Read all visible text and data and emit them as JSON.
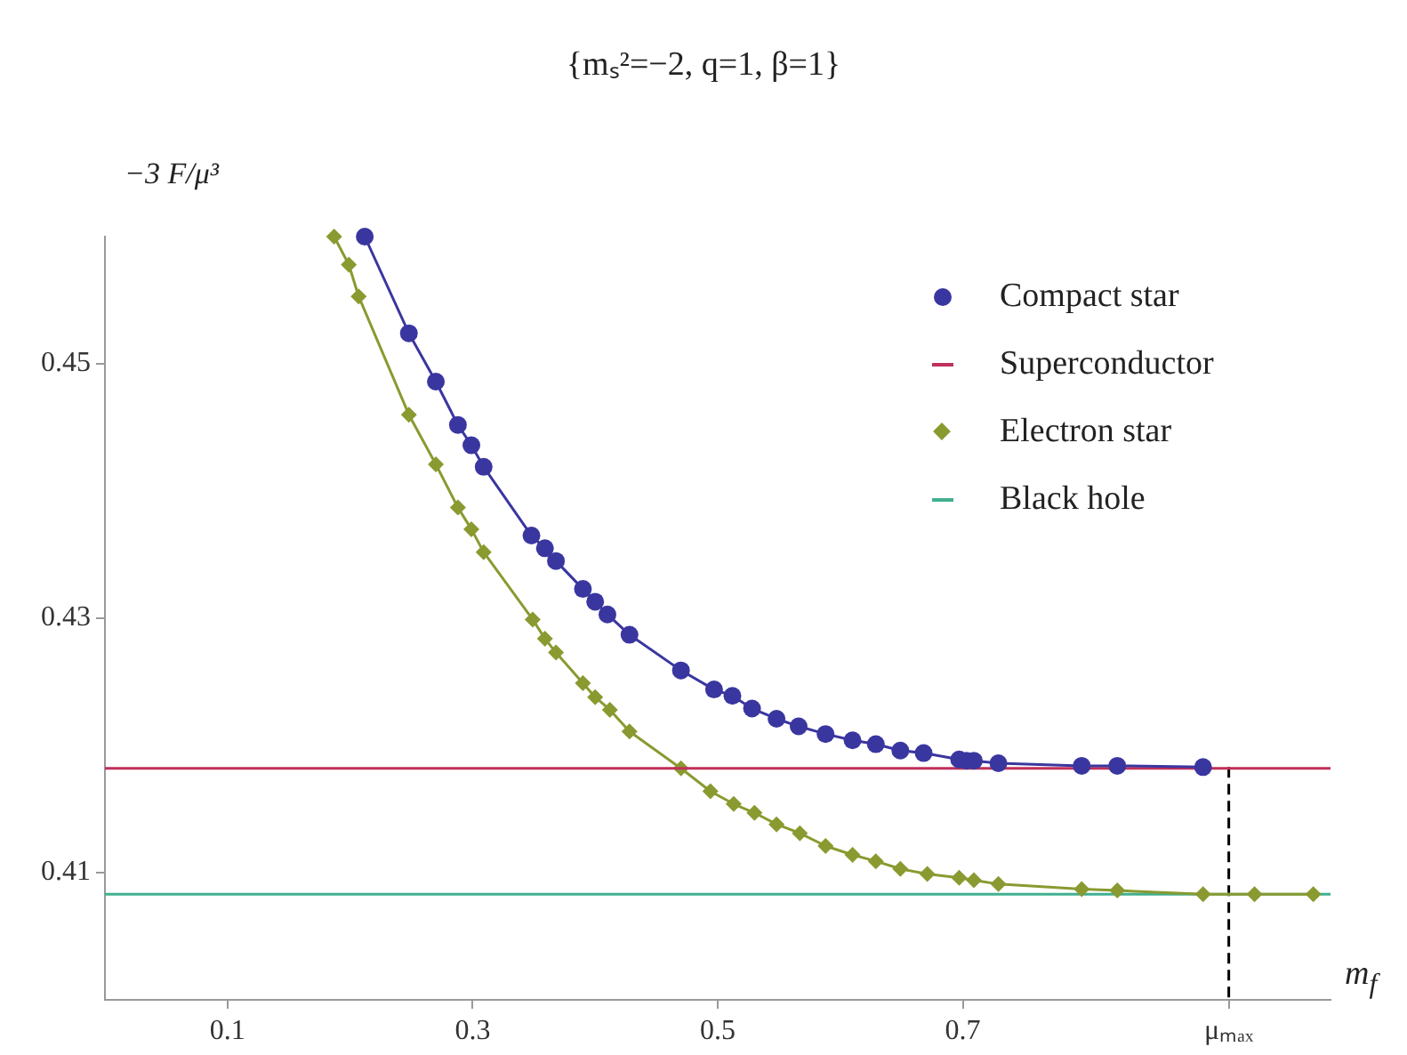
{
  "chart_data": {
    "type": "line",
    "title": "{mₛ²=−2, q=1, β=1}",
    "xlabel": "m$_{f}$",
    "ylabel": "−3 F/μ³",
    "xlim": [
      0,
      1
    ],
    "ylim": [
      0.4,
      0.46
    ],
    "xticks": [
      0.1,
      0.3,
      0.5,
      0.7,
      {
        "value": 0.917,
        "label": "μₘₐₓ"
      }
    ],
    "yticks": [
      0.41,
      0.43,
      0.45
    ],
    "grid": false,
    "legend": "top right",
    "series": [
      {
        "name": "Compact star",
        "color": "#3a36a0",
        "marker": "circle",
        "x": [
          0.212,
          0.248,
          0.27,
          0.288,
          0.299,
          0.309,
          0.348,
          0.359,
          0.368,
          0.39,
          0.4,
          0.41,
          0.428,
          0.47,
          0.497,
          0.512,
          0.528,
          0.548,
          0.566,
          0.588,
          0.61,
          0.629,
          0.649,
          0.668,
          0.697,
          0.703,
          0.709,
          0.729,
          0.797,
          0.826,
          0.896
        ],
        "values": [
          0.46,
          0.4524,
          0.4486,
          0.4452,
          0.4436,
          0.4419,
          0.4365,
          0.4355,
          0.4345,
          0.4323,
          0.4313,
          0.4303,
          0.4287,
          0.4259,
          0.4244,
          0.4239,
          0.4229,
          0.4221,
          0.4215,
          0.4209,
          0.4204,
          0.4201,
          0.4196,
          0.4194,
          0.4189,
          0.4188,
          0.4188,
          0.4186,
          0.4184,
          0.4184,
          0.4183
        ]
      },
      {
        "name": "Superconductor",
        "color": "#c0305a",
        "marker": "none",
        "x": [
          0,
          1
        ],
        "values": [
          0.4182,
          0.4182
        ]
      },
      {
        "name": "Electron star",
        "color": "#8a9a30",
        "marker": "diamond",
        "x": [
          0.187,
          0.199,
          0.207,
          0.248,
          0.27,
          0.288,
          0.299,
          0.309,
          0.349,
          0.359,
          0.368,
          0.39,
          0.4,
          0.412,
          0.428,
          0.47,
          0.494,
          0.513,
          0.53,
          0.548,
          0.567,
          0.588,
          0.61,
          0.629,
          0.649,
          0.671,
          0.697,
          0.709,
          0.729,
          0.797,
          0.826,
          0.896,
          0.938,
          0.986
        ],
        "values": [
          0.46,
          0.4578,
          0.4553,
          0.446,
          0.4421,
          0.4387,
          0.437,
          0.4352,
          0.4299,
          0.4284,
          0.4273,
          0.4249,
          0.4238,
          0.4228,
          0.4211,
          0.4182,
          0.4164,
          0.4154,
          0.4147,
          0.4138,
          0.4131,
          0.4121,
          0.4114,
          0.4109,
          0.4103,
          0.4099,
          0.4096,
          0.4094,
          0.4091,
          0.4087,
          0.4086,
          0.4083,
          0.4083,
          0.4083
        ]
      },
      {
        "name": "Black hole",
        "color": "#40b090",
        "marker": "none",
        "x": [
          0,
          1
        ],
        "values": [
          0.4083,
          0.4083
        ]
      },
      {
        "color": "#000000",
        "marker": "none",
        "line_style": "dashed",
        "x": [
          0.917,
          0.917
        ],
        "values": [
          0.4183,
          0.4
        ]
      }
    ]
  }
}
